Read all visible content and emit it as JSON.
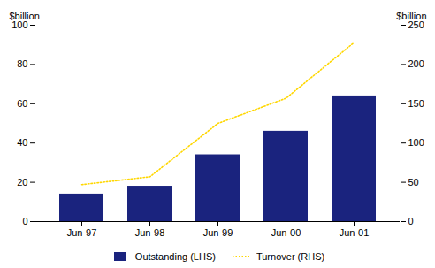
{
  "chart_data": {
    "type": "bar",
    "categories": [
      "Jun-97",
      "Jun-98",
      "Jun-99",
      "Jun-00",
      "Jun-01"
    ],
    "series": [
      {
        "name": "Outstanding (LHS)",
        "type": "bar",
        "color": "#1a237e",
        "values": [
          14,
          18,
          34,
          46,
          64
        ]
      },
      {
        "name": "Turnover (RHS)",
        "type": "line",
        "axis": "y2",
        "color": "#FFD700",
        "line_style": "dotted",
        "values": [
          47,
          57,
          125,
          157,
          228
        ]
      }
    ],
    "ylabel": "$billion",
    "y2label": "$billion",
    "ylim": [
      0,
      100
    ],
    "yticks": [
      0,
      20,
      40,
      60,
      80,
      100
    ],
    "y2lim": [
      0,
      250
    ],
    "y2ticks": [
      0,
      50,
      100,
      150,
      200,
      250
    ],
    "grid": false,
    "legend": "bottom"
  }
}
